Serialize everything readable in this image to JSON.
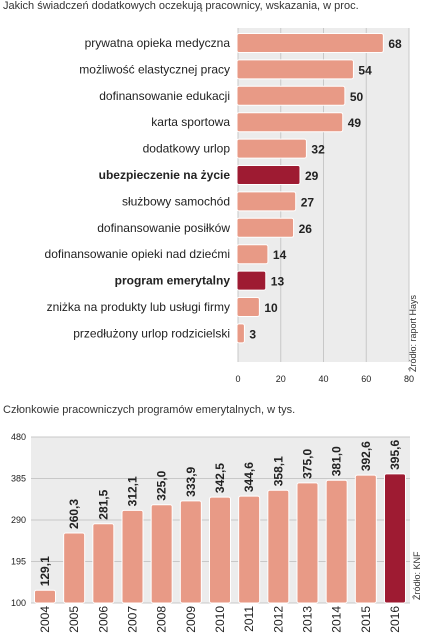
{
  "chart_data": [
    {
      "type": "bar",
      "orientation": "horizontal",
      "title": "Jakich świadczeń dodatkowych oczekują pracownicy, wskazania, w proc.",
      "categories": [
        "prywatna opieka medyczna",
        "możliwość elastycznej pracy",
        "dofinansowanie edukacji",
        "karta sportowa",
        "dodatkowy urlop",
        "ubezpieczenie na życie",
        "służbowy samochód",
        "dofinansowanie posiłków",
        "dofinansowanie opieki nad dziećmi",
        "program emerytalny",
        "zniżka na produkty lub usługi firmy",
        "przedłużony urlop rodzicielski"
      ],
      "values": [
        68,
        54,
        50,
        49,
        32,
        29,
        27,
        26,
        14,
        13,
        10,
        3
      ],
      "highlighted": [
        "ubezpieczenie na życie",
        "program emerytalny"
      ],
      "xlim": [
        0,
        80
      ],
      "xticks": [
        0,
        20,
        40,
        60,
        80
      ],
      "grid": true,
      "source": "Źródło: raport Hays"
    },
    {
      "type": "bar",
      "orientation": "vertical",
      "title": "Członkowie pracowniczych programów emerytalnych, w tys.",
      "categories": [
        "2004",
        "2005",
        "2006",
        "2007",
        "2008",
        "2009",
        "2010",
        "2011",
        "2012",
        "2013",
        "2014",
        "2015",
        "2016"
      ],
      "values": [
        129.1,
        260.3,
        281.5,
        312.1,
        325.0,
        333.9,
        342.5,
        344.6,
        358.1,
        375.0,
        381.0,
        392.6,
        395.6
      ],
      "value_labels": [
        "129,1",
        "260,3",
        "281,5",
        "312,1",
        "325,0",
        "333,9",
        "342,5",
        "344,6",
        "358,1",
        "375,0",
        "381,0",
        "392,6",
        "395,6"
      ],
      "highlighted": [
        "2016"
      ],
      "ylim": [
        100,
        480
      ],
      "yticks": [
        100,
        195,
        290,
        385,
        480
      ],
      "grid": true,
      "source": "Źródło: KNF"
    }
  ],
  "colors": {
    "bar": "#e89a86",
    "bar_highlight": "#9e1b32",
    "bar_stroke": "#ffffff",
    "grid": "#c8c8c8",
    "panel_bg": "#ececec"
  }
}
